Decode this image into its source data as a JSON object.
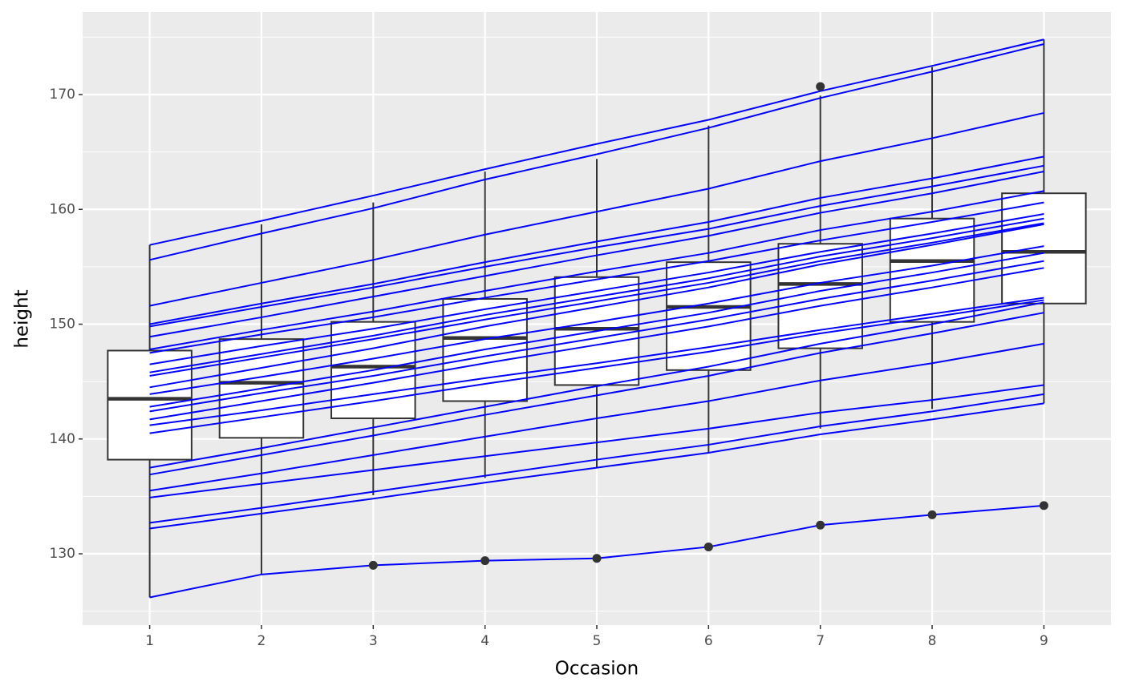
{
  "chart_data": {
    "type": "boxplot",
    "x_label": "Occasion",
    "y_label": "height",
    "categories": [
      "1",
      "2",
      "3",
      "4",
      "5",
      "6",
      "7",
      "8",
      "9"
    ],
    "ylim": [
      123.79,
      177.19
    ],
    "yticks": [
      130,
      140,
      150,
      160,
      170
    ],
    "grid": true,
    "box_color": "#333333",
    "box_fill": "#ffffff",
    "boxes": [
      {
        "lower_whisker": 126.2,
        "q1": 138.2,
        "median": 143.5,
        "q3": 147.7,
        "upper_whisker": 156.9,
        "outliers": []
      },
      {
        "lower_whisker": 128.2,
        "q1": 140.1,
        "median": 144.9,
        "q3": 148.7,
        "upper_whisker": 158.7,
        "outliers": []
      },
      {
        "lower_whisker": 135.1,
        "q1": 141.8,
        "median": 146.3,
        "q3": 150.2,
        "upper_whisker": 160.6,
        "outliers": [
          129.0
        ]
      },
      {
        "lower_whisker": 136.6,
        "q1": 143.3,
        "median": 148.8,
        "q3": 152.2,
        "upper_whisker": 163.3,
        "outliers": [
          129.4
        ]
      },
      {
        "lower_whisker": 137.5,
        "q1": 144.7,
        "median": 149.6,
        "q3": 154.1,
        "upper_whisker": 164.4,
        "outliers": [
          129.6
        ]
      },
      {
        "lower_whisker": 138.8,
        "q1": 146.0,
        "median": 151.5,
        "q3": 155.4,
        "upper_whisker": 167.3,
        "outliers": [
          130.6
        ]
      },
      {
        "lower_whisker": 140.9,
        "q1": 147.9,
        "median": 153.5,
        "q3": 157.0,
        "upper_whisker": 169.9,
        "outliers": [
          170.7,
          132.5
        ]
      },
      {
        "lower_whisker": 142.6,
        "q1": 150.2,
        "median": 155.5,
        "q3": 159.2,
        "upper_whisker": 172.4,
        "outliers": [
          133.4
        ]
      },
      {
        "lower_whisker": 143.1,
        "q1": 151.8,
        "median": 156.3,
        "q3": 161.4,
        "upper_whisker": 174.8,
        "outliers": [
          134.2
        ]
      }
    ],
    "line_color": "#0000ff",
    "series": [
      {
        "values": [
          156.9,
          159.0,
          161.2,
          163.5,
          165.7,
          167.8,
          170.3,
          172.5,
          174.8
        ]
      },
      {
        "values": [
          155.6,
          157.9,
          160.1,
          162.6,
          164.8,
          167.1,
          169.7,
          172.0,
          174.4
        ]
      },
      {
        "values": [
          151.6,
          153.6,
          155.6,
          157.8,
          159.8,
          161.8,
          164.2,
          166.2,
          168.4
        ]
      },
      {
        "values": [
          150.0,
          151.8,
          153.5,
          155.4,
          157.2,
          158.9,
          161.0,
          162.7,
          164.6
        ]
      },
      {
        "values": [
          149.8,
          151.5,
          153.2,
          155.0,
          156.7,
          158.3,
          160.3,
          162.0,
          163.8
        ]
      },
      {
        "values": [
          148.9,
          150.6,
          152.4,
          154.2,
          156.0,
          157.7,
          159.7,
          161.4,
          163.3
        ]
      },
      {
        "values": [
          147.8,
          149.5,
          151.1,
          152.9,
          154.6,
          156.2,
          158.2,
          159.8,
          161.6
        ]
      },
      {
        "values": [
          147.5,
          149.1,
          150.6,
          152.3,
          153.9,
          155.5,
          157.3,
          158.9,
          160.6
        ]
      },
      {
        "values": [
          146.5,
          148.1,
          149.6,
          151.3,
          152.9,
          154.5,
          156.3,
          157.9,
          159.6
        ]
      },
      {
        "values": [
          145.8,
          147.4,
          149.0,
          150.8,
          152.4,
          154.0,
          155.9,
          157.5,
          159.2
        ]
      },
      {
        "values": [
          145.5,
          147.1,
          148.7,
          150.4,
          152.0,
          153.6,
          155.5,
          157.1,
          158.8
        ]
      },
      {
        "values": [
          144.5,
          146.2,
          147.9,
          149.8,
          151.5,
          153.2,
          155.2,
          156.9,
          158.7
        ]
      },
      {
        "values": [
          143.9,
          145.4,
          147.0,
          148.7,
          150.2,
          151.8,
          153.6,
          155.1,
          156.8
        ]
      },
      {
        "values": [
          142.8,
          144.4,
          146.0,
          147.8,
          149.4,
          151.0,
          152.9,
          154.5,
          156.2
        ]
      },
      {
        "values": [
          142.4,
          144.0,
          145.5,
          147.2,
          148.8,
          150.4,
          152.2,
          153.8,
          155.5
        ]
      },
      {
        "values": [
          141.7,
          143.3,
          144.9,
          146.6,
          148.2,
          149.8,
          151.6,
          153.2,
          154.9
        ]
      },
      {
        "values": [
          141.2,
          142.5,
          143.9,
          145.3,
          146.6,
          148.0,
          149.5,
          150.9,
          152.3
        ]
      },
      {
        "values": [
          140.5,
          141.9,
          143.3,
          144.8,
          146.2,
          147.6,
          149.2,
          150.6,
          152.1
        ]
      },
      {
        "values": [
          137.5,
          139.2,
          141.0,
          142.8,
          144.6,
          146.3,
          148.3,
          150.0,
          151.9
        ]
      },
      {
        "values": [
          136.9,
          138.6,
          140.3,
          142.1,
          143.8,
          145.5,
          147.5,
          149.2,
          151.0
        ]
      },
      {
        "values": [
          135.5,
          137.0,
          138.6,
          140.2,
          141.8,
          143.3,
          145.1,
          146.6,
          148.3
        ]
      },
      {
        "values": [
          134.9,
          136.1,
          137.3,
          138.5,
          139.7,
          140.9,
          142.3,
          143.4,
          144.7
        ]
      },
      {
        "values": [
          132.7,
          134.0,
          135.4,
          136.8,
          138.2,
          139.5,
          141.1,
          142.4,
          143.9
        ]
      },
      {
        "values": [
          132.2,
          133.5,
          134.8,
          136.2,
          137.5,
          138.8,
          140.4,
          141.7,
          143.1
        ]
      },
      {
        "values": [
          126.2,
          128.2,
          129.0,
          129.4,
          129.6,
          130.6,
          132.5,
          133.4,
          134.2
        ]
      }
    ]
  }
}
